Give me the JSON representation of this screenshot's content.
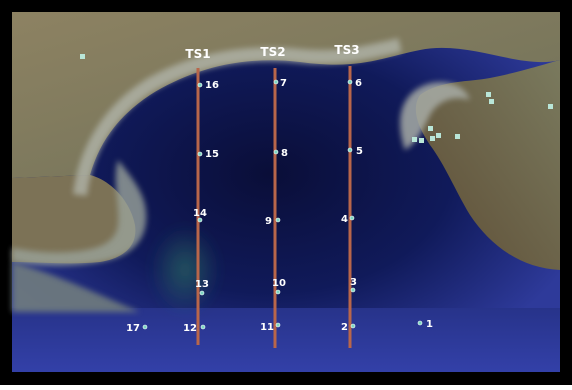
{
  "transects": [
    {
      "label": "TS1",
      "color": "#b8664a"
    },
    {
      "label": "TS2",
      "color": "#b8664a"
    },
    {
      "label": "TS3",
      "color": "#b8664a"
    }
  ],
  "stations": [
    {
      "label": "1"
    },
    {
      "label": "2"
    },
    {
      "label": "3"
    },
    {
      "label": "4"
    },
    {
      "label": "5"
    },
    {
      "label": "6"
    },
    {
      "label": "7"
    },
    {
      "label": "8"
    },
    {
      "label": "9"
    },
    {
      "label": "10"
    },
    {
      "label": "11"
    },
    {
      "label": "12"
    },
    {
      "label": "13"
    },
    {
      "label": "14"
    },
    {
      "label": "15"
    },
    {
      "label": "16"
    },
    {
      "label": "17"
    }
  ],
  "colors": {
    "frame": "#000000",
    "land": "#8a7a5e",
    "tidal_flat": "#a0a9a0",
    "deep_water": "#0a0f3a",
    "open_sea": "#2e3a9a",
    "marker": "#7fd6c3",
    "label": "#ffffff"
  }
}
